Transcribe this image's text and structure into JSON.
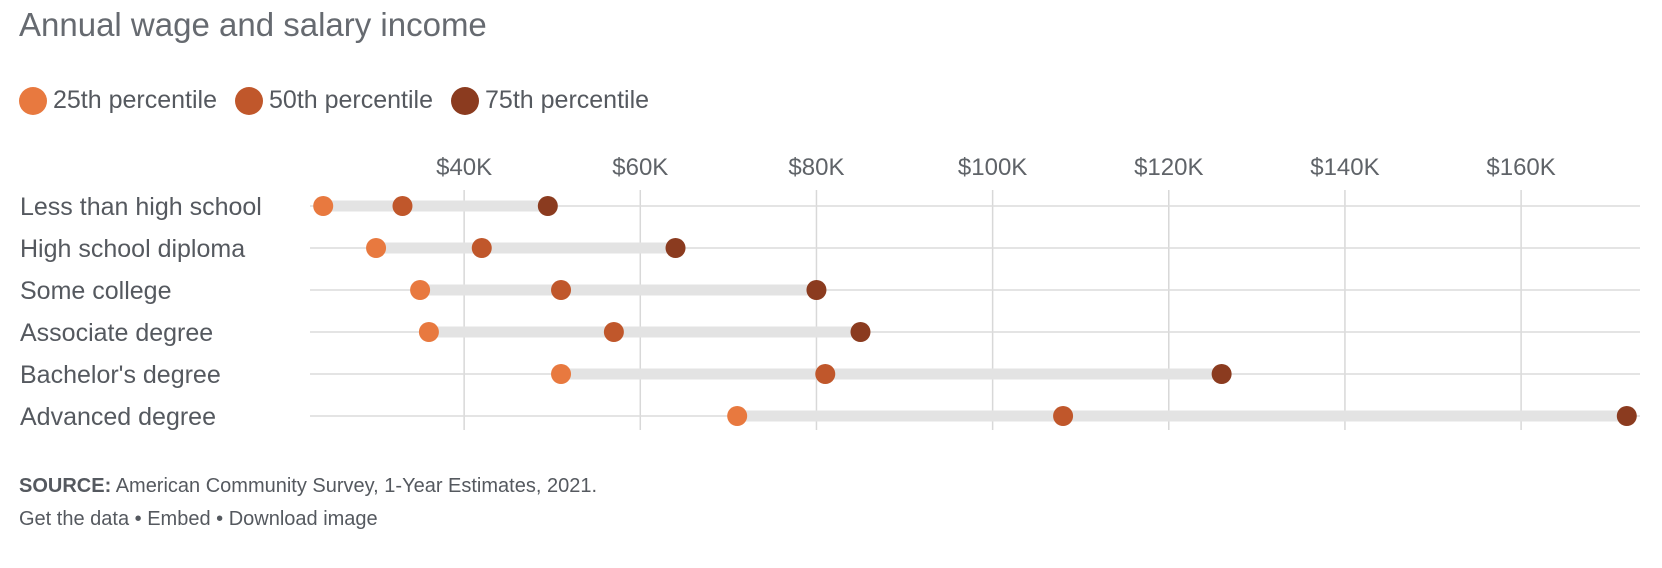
{
  "chart_data": {
    "type": "dot-range",
    "title": "Annual wage and salary income",
    "series_names": [
      "25th percentile",
      "50th percentile",
      "75th percentile"
    ],
    "series_colors": [
      "#e8793f",
      "#c0572b",
      "#8b3b1f"
    ],
    "x_ticks": [
      40000,
      60000,
      80000,
      100000,
      120000,
      140000,
      160000
    ],
    "x_tick_labels": [
      "$40K",
      "$60K",
      "$80K",
      "$100K",
      "$120K",
      "$140K",
      "$160K"
    ],
    "xlim": [
      22500,
      173500
    ],
    "grid": true,
    "legend_position": "top-left",
    "categories": [
      "Less than high school",
      "High school diploma",
      "Some college",
      "Associate degree",
      "Bachelor's degree",
      "Advanced degree"
    ],
    "series": [
      {
        "name": "25th percentile",
        "values": [
          24000,
          30000,
          35000,
          36000,
          51000,
          71000
        ]
      },
      {
        "name": "50th percentile",
        "values": [
          33000,
          42000,
          51000,
          57000,
          81000,
          108000
        ]
      },
      {
        "name": "75th percentile",
        "values": [
          49500,
          64000,
          80000,
          85000,
          126000,
          172000
        ]
      }
    ]
  },
  "footer": {
    "source_label": "SOURCE:",
    "source_text": "American Community Survey, 1-Year Estimates, 2021.",
    "links": [
      "Get the data",
      "Embed",
      "Download image"
    ],
    "separator": " • "
  }
}
